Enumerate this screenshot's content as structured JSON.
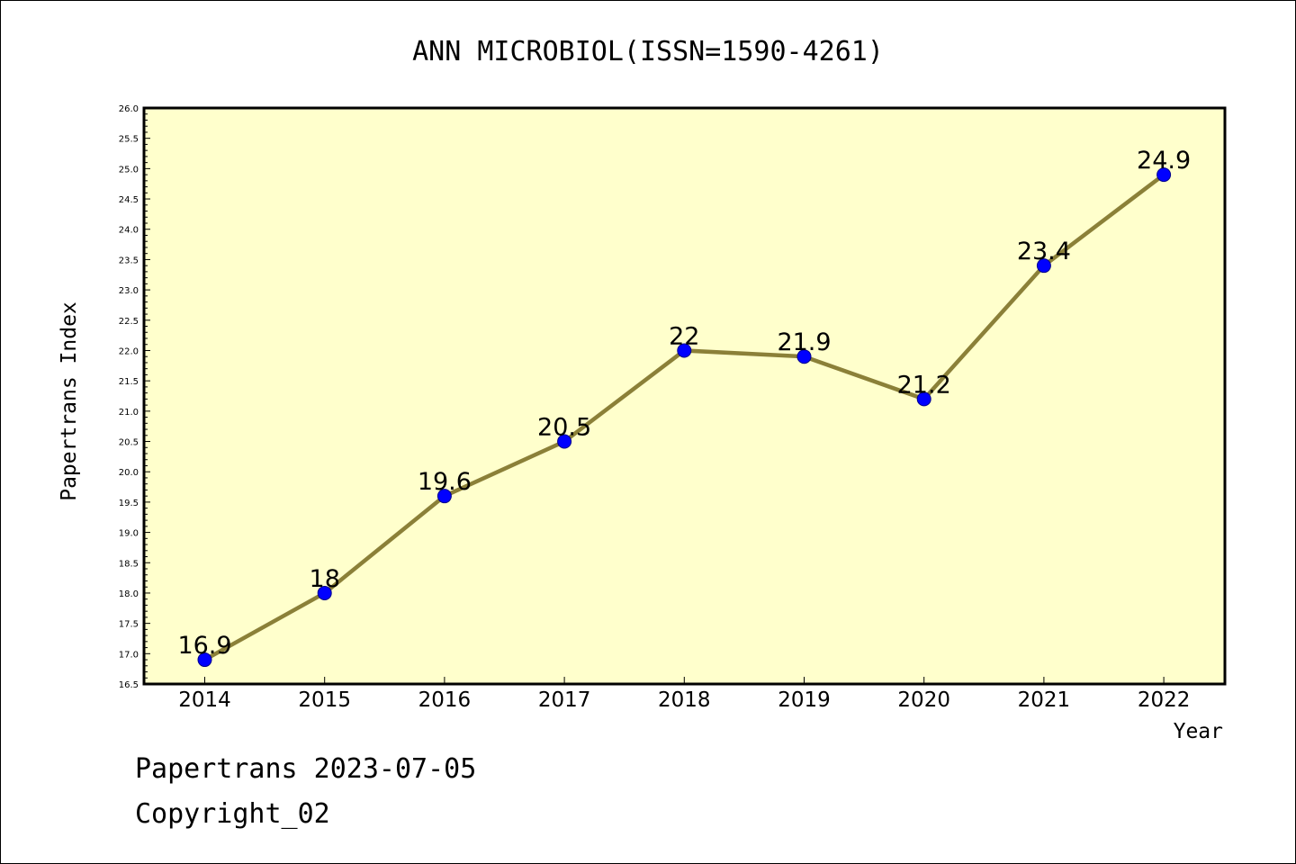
{
  "chart_data": {
    "type": "line",
    "title": "ANN MICROBIOL(ISSN=1590-4261)",
    "xlabel": "Year",
    "ylabel": "Papertrans Index",
    "categories": [
      "2014",
      "2015",
      "2016",
      "2017",
      "2018",
      "2019",
      "2020",
      "2021",
      "2022"
    ],
    "values": [
      16.9,
      18,
      19.6,
      20.5,
      22,
      21.9,
      21.2,
      23.4,
      24.9
    ],
    "data_labels": [
      "16.9",
      "18",
      "19.6",
      "20.5",
      "22",
      "21.9",
      "21.2",
      "23.4",
      "24.9"
    ],
    "ylim": [
      16.5,
      26.0
    ],
    "y_ticks": [
      "16.5",
      "17.0",
      "17.5",
      "18.0",
      "18.5",
      "19.0",
      "19.5",
      "20.0",
      "20.5",
      "21.0",
      "21.5",
      "22.0",
      "22.5",
      "23.0",
      "23.5",
      "24.0",
      "24.5",
      "25.0",
      "25.5",
      "26.0"
    ],
    "grid": false,
    "colors": {
      "plot_background": "#ffffcc",
      "line": "#8b8038",
      "marker": "#0000ff"
    }
  },
  "footer": {
    "line1": "Papertrans 2023-07-05",
    "line2": "Copyright_02"
  }
}
